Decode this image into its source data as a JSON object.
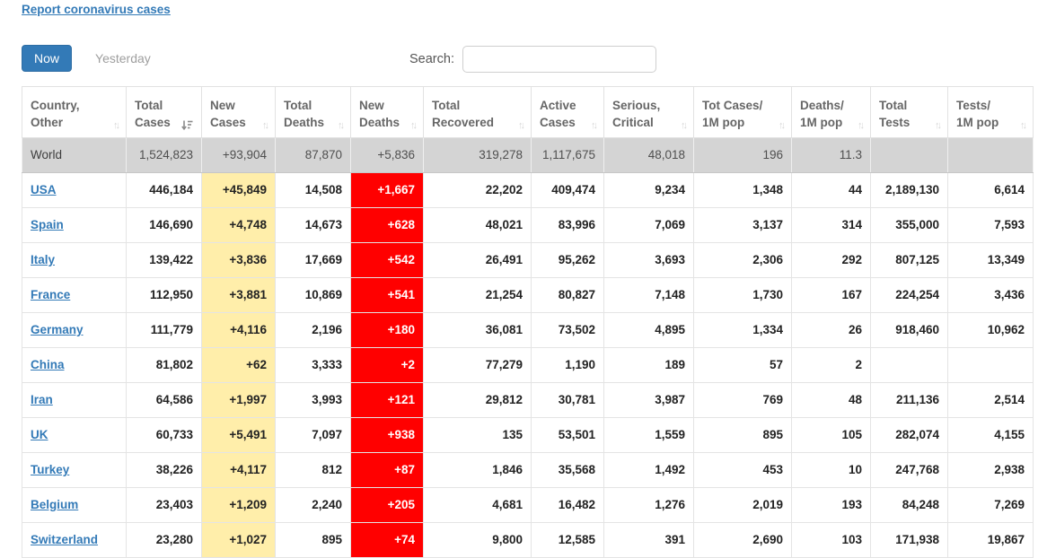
{
  "page": {
    "report_link": "Report coronavirus cases",
    "toggle_now": "Now",
    "toggle_yesterday": "Yesterday",
    "search": {
      "label": "Search:",
      "value": ""
    }
  },
  "colors": {
    "accent_blue": "#337ab7",
    "new_cases_bg": "#FFEEAA",
    "new_deaths_bg": "#FF0000",
    "world_row_bg": "#D4D4D4",
    "header_text": "#666666",
    "muted_text": "#9E9E9E"
  },
  "table": {
    "column_keys": [
      "country",
      "total-cases",
      "new-cases",
      "total-deaths",
      "new-deaths",
      "total-recovered",
      "active-cases",
      "serious-critical",
      "cases-per-1m",
      "deaths-per-1m",
      "total-tests",
      "tests-per-1m"
    ],
    "columns": [
      {
        "line1": "Country,",
        "line2": "Other",
        "sorted": false
      },
      {
        "line1": "Total",
        "line2": "Cases",
        "sorted": true
      },
      {
        "line1": "New",
        "line2": "Cases",
        "sorted": false
      },
      {
        "line1": "Total",
        "line2": "Deaths",
        "sorted": false
      },
      {
        "line1": "New",
        "line2": "Deaths",
        "sorted": false
      },
      {
        "line1": "Total",
        "line2": "Recovered",
        "sorted": false
      },
      {
        "line1": "Active",
        "line2": "Cases",
        "sorted": false
      },
      {
        "line1": "Serious,",
        "line2": "Critical",
        "sorted": false
      },
      {
        "line1": "Tot Cases/",
        "line2": "1M pop",
        "sorted": false
      },
      {
        "line1": "Deaths/",
        "line2": "1M pop",
        "sorted": false
      },
      {
        "line1": "Total",
        "line2": "Tests",
        "sorted": false
      },
      {
        "line1": "Tests/",
        "line2": "1M pop",
        "sorted": false
      }
    ],
    "unsorted_icon_glyph": "↑↓",
    "rows": [
      {
        "country": "World",
        "world": true,
        "values": [
          "1,524,823",
          "+93,904",
          "87,870",
          "+5,836",
          "319,278",
          "1,117,675",
          "48,018",
          "196",
          "11.3",
          "",
          ""
        ]
      },
      {
        "country": "USA",
        "world": false,
        "values": [
          "446,184",
          "+45,849",
          "14,508",
          "+1,667",
          "22,202",
          "409,474",
          "9,234",
          "1,348",
          "44",
          "2,189,130",
          "6,614"
        ]
      },
      {
        "country": "Spain",
        "world": false,
        "values": [
          "146,690",
          "+4,748",
          "14,673",
          "+628",
          "48,021",
          "83,996",
          "7,069",
          "3,137",
          "314",
          "355,000",
          "7,593"
        ]
      },
      {
        "country": "Italy",
        "world": false,
        "values": [
          "139,422",
          "+3,836",
          "17,669",
          "+542",
          "26,491",
          "95,262",
          "3,693",
          "2,306",
          "292",
          "807,125",
          "13,349"
        ]
      },
      {
        "country": "France",
        "world": false,
        "values": [
          "112,950",
          "+3,881",
          "10,869",
          "+541",
          "21,254",
          "80,827",
          "7,148",
          "1,730",
          "167",
          "224,254",
          "3,436"
        ]
      },
      {
        "country": "Germany",
        "world": false,
        "values": [
          "111,779",
          "+4,116",
          "2,196",
          "+180",
          "36,081",
          "73,502",
          "4,895",
          "1,334",
          "26",
          "918,460",
          "10,962"
        ]
      },
      {
        "country": "China",
        "world": false,
        "values": [
          "81,802",
          "+62",
          "3,333",
          "+2",
          "77,279",
          "1,190",
          "189",
          "57",
          "2",
          "",
          ""
        ]
      },
      {
        "country": "Iran",
        "world": false,
        "values": [
          "64,586",
          "+1,997",
          "3,993",
          "+121",
          "29,812",
          "30,781",
          "3,987",
          "769",
          "48",
          "211,136",
          "2,514"
        ]
      },
      {
        "country": "UK",
        "world": false,
        "values": [
          "60,733",
          "+5,491",
          "7,097",
          "+938",
          "135",
          "53,501",
          "1,559",
          "895",
          "105",
          "282,074",
          "4,155"
        ]
      },
      {
        "country": "Turkey",
        "world": false,
        "values": [
          "38,226",
          "+4,117",
          "812",
          "+87",
          "1,846",
          "35,568",
          "1,492",
          "453",
          "10",
          "247,768",
          "2,938"
        ]
      },
      {
        "country": "Belgium",
        "world": false,
        "values": [
          "23,403",
          "+1,209",
          "2,240",
          "+205",
          "4,681",
          "16,482",
          "1,276",
          "2,019",
          "193",
          "84,248",
          "7,269"
        ]
      },
      {
        "country": "Switzerland",
        "world": false,
        "values": [
          "23,280",
          "+1,027",
          "895",
          "+74",
          "9,800",
          "12,585",
          "391",
          "2,690",
          "103",
          "171,938",
          "19,867"
        ]
      }
    ]
  }
}
